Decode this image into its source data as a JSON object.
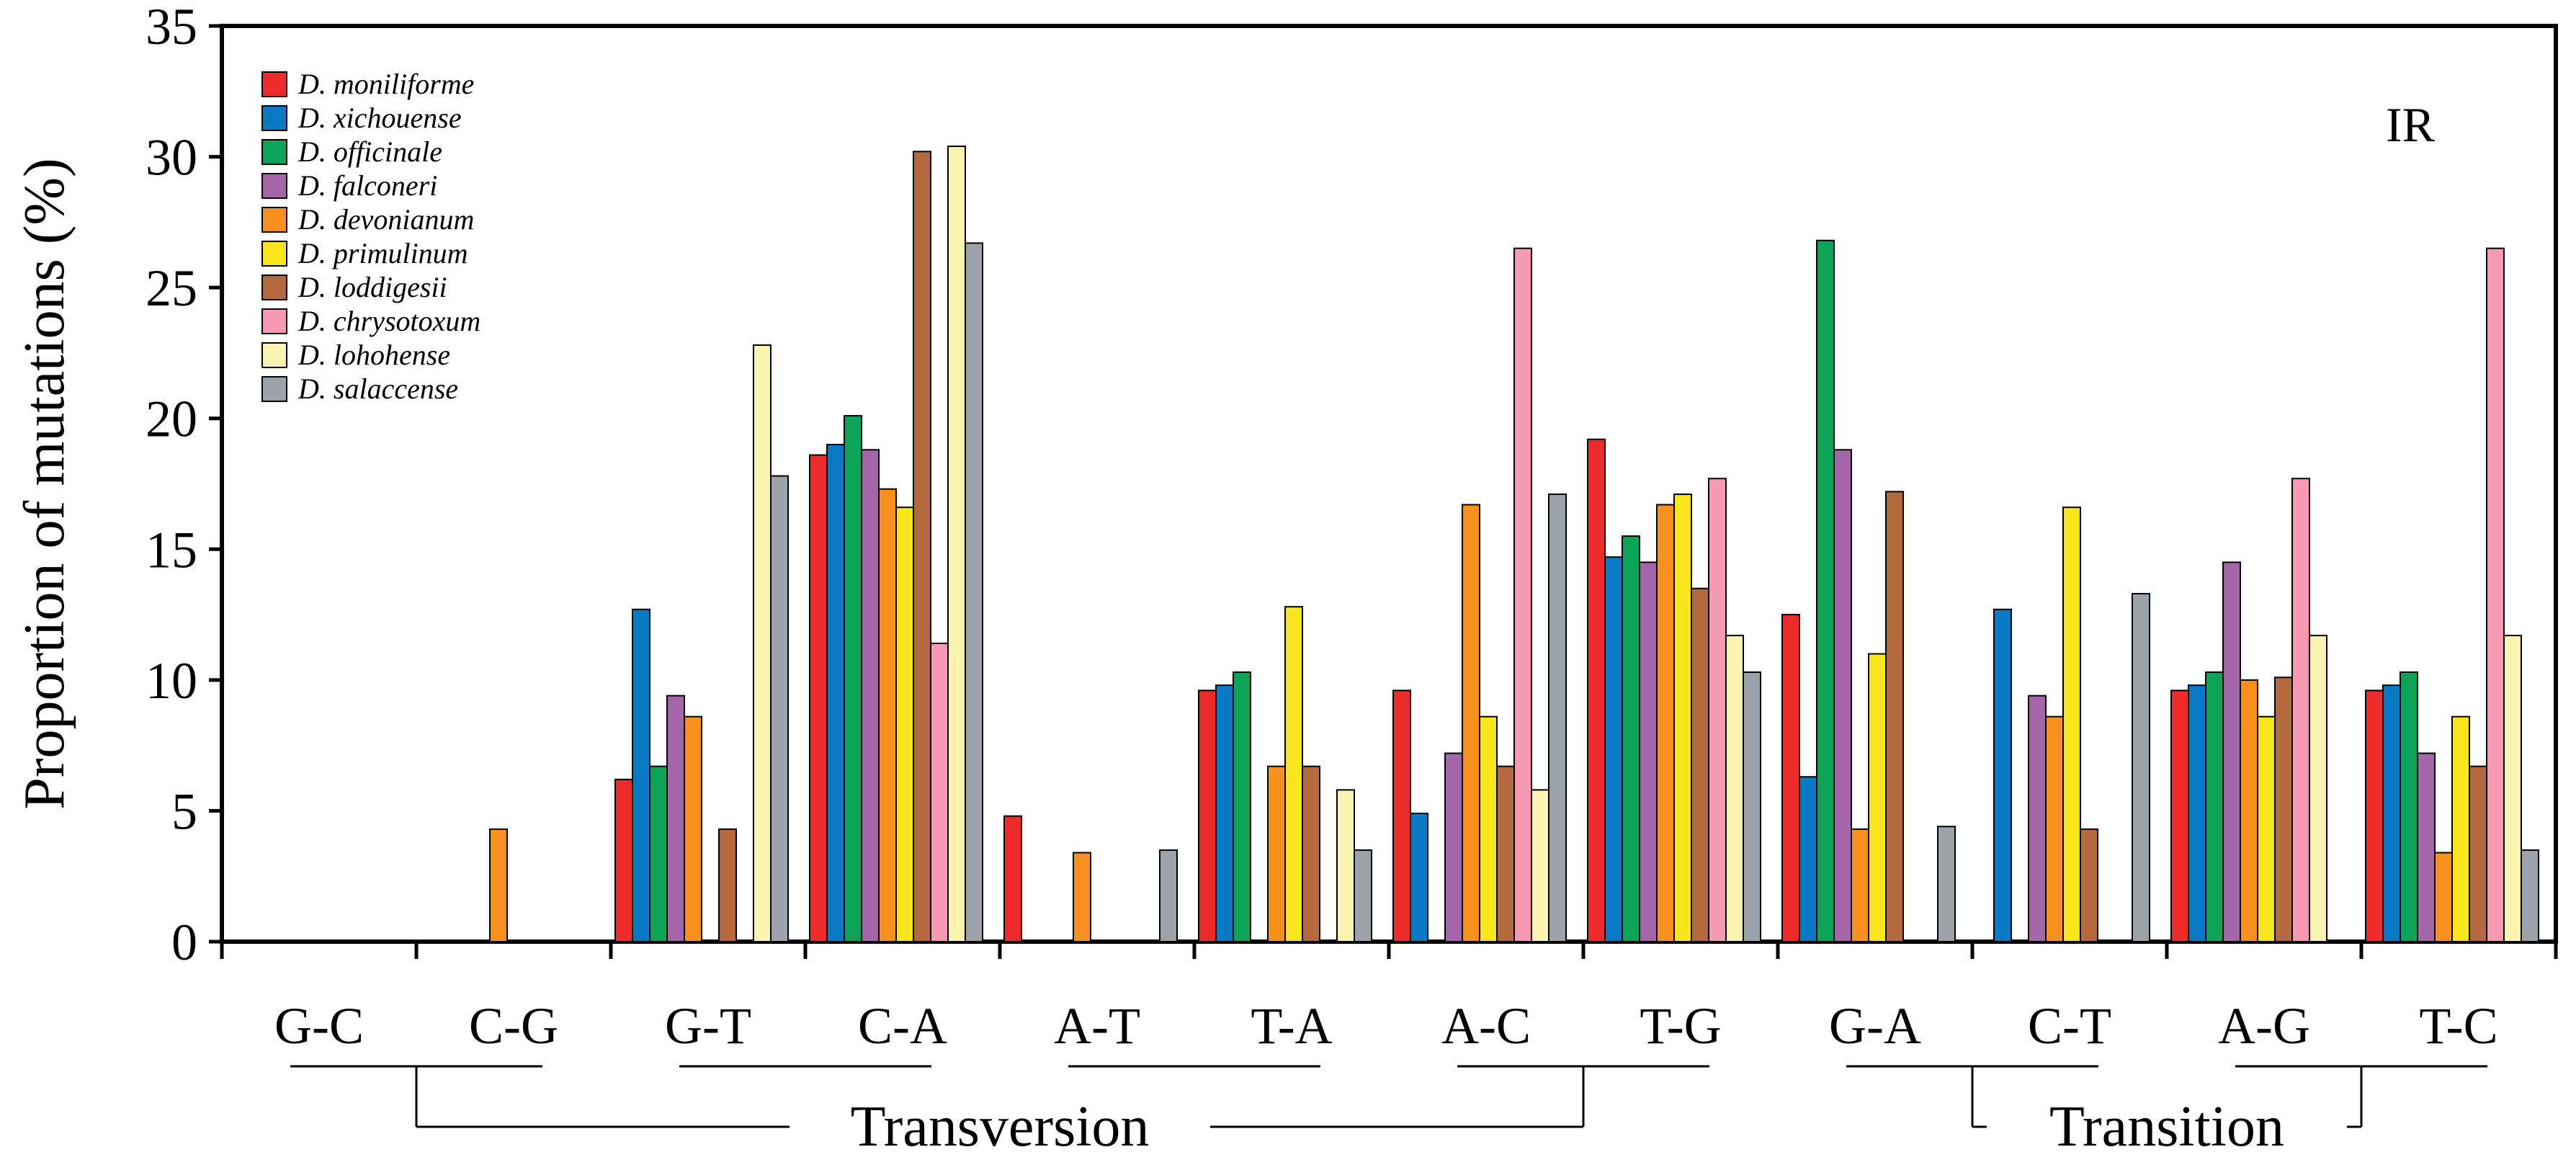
{
  "chart_data": {
    "type": "bar",
    "panel_label": "IR",
    "ylabel": "Proportion of mutations (%)",
    "xlabel": "",
    "ylim": [
      0,
      35
    ],
    "yticks": [
      0,
      5,
      10,
      15,
      20,
      25,
      30,
      35
    ],
    "ytick_labels": [
      "0",
      "5",
      "10",
      "15",
      "20",
      "25",
      "30",
      "35"
    ],
    "grid": false,
    "legend_position": "top-left",
    "categories": [
      "G-C",
      "C-G",
      "G-T",
      "C-A",
      "A-T",
      "T-A",
      "A-C",
      "T-G",
      "G-A",
      "C-T",
      "A-G",
      "T-C"
    ],
    "pairs": [
      {
        "members": [
          "G-C",
          "C-G"
        ],
        "group": "Transversion"
      },
      {
        "members": [
          "G-T",
          "C-A"
        ],
        "group": "Transversion"
      },
      {
        "members": [
          "A-T",
          "T-A"
        ],
        "group": "Transversion"
      },
      {
        "members": [
          "A-C",
          "T-G"
        ],
        "group": "Transversion"
      },
      {
        "members": [
          "G-A",
          "C-T"
        ],
        "group": "Transition"
      },
      {
        "members": [
          "A-G",
          "T-C"
        ],
        "group": "Transition"
      }
    ],
    "groups": [
      {
        "label": "Transversion",
        "categories": [
          "G-C",
          "C-G",
          "G-T",
          "C-A",
          "A-T",
          "T-A",
          "A-C",
          "T-G"
        ]
      },
      {
        "label": "Transition",
        "categories": [
          "G-A",
          "C-T",
          "A-G",
          "T-C"
        ]
      }
    ],
    "series": [
      {
        "name": "D. moniliforme",
        "color": "#ee2b2b",
        "values": [
          0,
          0,
          6.2,
          18.6,
          4.8,
          9.6,
          9.6,
          19.2,
          12.5,
          0,
          9.6,
          9.6
        ]
      },
      {
        "name": "D. xichouense",
        "color": "#0a7ac4",
        "values": [
          0,
          0,
          12.7,
          19.0,
          0,
          9.8,
          4.9,
          14.7,
          6.3,
          12.7,
          9.8,
          9.8
        ]
      },
      {
        "name": "D. officinale",
        "color": "#0ea456",
        "values": [
          0,
          0,
          6.7,
          20.1,
          0,
          10.3,
          0,
          15.5,
          26.8,
          0,
          10.3,
          10.3
        ]
      },
      {
        "name": "D. falconeri",
        "color": "#a466a8",
        "values": [
          0,
          0,
          9.4,
          18.8,
          0,
          0,
          7.2,
          14.5,
          18.8,
          9.4,
          14.5,
          7.2
        ]
      },
      {
        "name": "D. devonianum",
        "color": "#f7901e",
        "values": [
          0,
          4.3,
          8.6,
          17.3,
          3.4,
          6.7,
          16.7,
          16.7,
          4.3,
          8.6,
          10.0,
          3.4
        ]
      },
      {
        "name": "D. primulinum",
        "color": "#f9e51b",
        "values": [
          0,
          0,
          0,
          16.6,
          0,
          12.8,
          8.6,
          17.1,
          11.0,
          16.6,
          8.6,
          8.6
        ]
      },
      {
        "name": "D. loddigesii",
        "color": "#b46a3e",
        "values": [
          0,
          0,
          4.3,
          30.2,
          0,
          6.7,
          6.7,
          13.5,
          17.2,
          4.3,
          10.1,
          6.7
        ]
      },
      {
        "name": "D. chrysotoxum",
        "color": "#f79ab4",
        "values": [
          0,
          0,
          0,
          11.4,
          0,
          0,
          26.5,
          17.7,
          0,
          0,
          17.7,
          26.5
        ]
      },
      {
        "name": "D. lohohense",
        "color": "#fbf3b0",
        "values": [
          0,
          0,
          22.8,
          30.4,
          0,
          5.8,
          5.8,
          11.7,
          0,
          0,
          11.7,
          11.7
        ]
      },
      {
        "name": "D. salaccense",
        "color": "#9ba3aa",
        "values": [
          0,
          0,
          17.8,
          26.7,
          3.5,
          3.5,
          17.1,
          10.3,
          4.4,
          13.3,
          0,
          3.5
        ]
      }
    ]
  }
}
